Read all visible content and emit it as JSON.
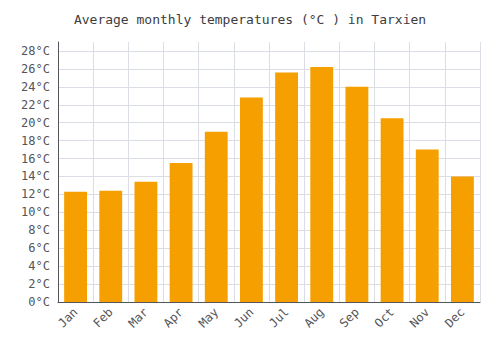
{
  "chart_data": {
    "type": "bar",
    "title": "Average monthly temperatures (°C ) in Tarxien",
    "categories": [
      "Jan",
      "Feb",
      "Mar",
      "Apr",
      "May",
      "Jun",
      "Jul",
      "Aug",
      "Sep",
      "Oct",
      "Nov",
      "Dec"
    ],
    "values": [
      12.3,
      12.4,
      13.4,
      15.5,
      19.0,
      22.8,
      25.6,
      26.2,
      24.0,
      20.5,
      17.0,
      14.0
    ],
    "color": "#F5A000",
    "ylim": [
      0,
      29
    ],
    "yticks": [
      {
        "value": 0,
        "label": "0°C"
      },
      {
        "value": 2,
        "label": "2°C"
      },
      {
        "value": 4,
        "label": "4°C"
      },
      {
        "value": 6,
        "label": "6°C"
      },
      {
        "value": 8,
        "label": "8°C"
      },
      {
        "value": 10,
        "label": "10°C"
      },
      {
        "value": 12,
        "label": "12°C"
      },
      {
        "value": 14,
        "label": "14°C"
      },
      {
        "value": 16,
        "label": "16°C"
      },
      {
        "value": 18,
        "label": "18°C"
      },
      {
        "value": 20,
        "label": "20°C"
      },
      {
        "value": 22,
        "label": "22°C"
      },
      {
        "value": 24,
        "label": "24°C"
      },
      {
        "value": 26,
        "label": "26°C"
      },
      {
        "value": 28,
        "label": "28°C"
      }
    ],
    "grid": true
  }
}
